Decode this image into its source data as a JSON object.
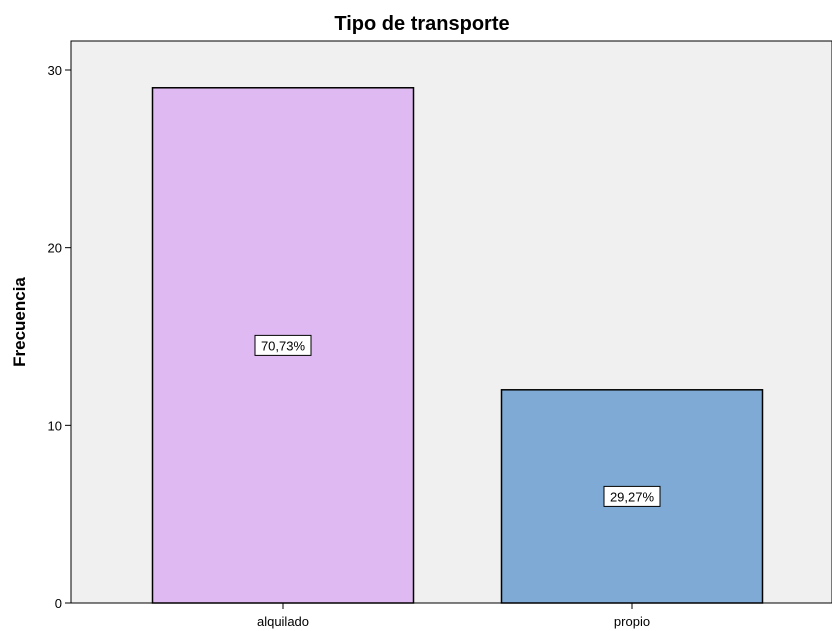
{
  "chart_data": {
    "type": "bar",
    "title": "Tipo de transporte",
    "xlabel": "",
    "ylabel": "Frecuencia",
    "categories": [
      "alquilado",
      "propio"
    ],
    "values": [
      29,
      12
    ],
    "data_labels": [
      "70,73%",
      "29,27%"
    ],
    "colors": [
      "#dfbaf2",
      "#7eaad5"
    ],
    "ylim": [
      0,
      30
    ],
    "yticks": [
      0,
      10,
      20,
      30
    ],
    "ytick_labels": [
      "0",
      "10",
      "20",
      "30"
    ],
    "grid": false,
    "legend": "none",
    "plot_background": "#f0f0f0"
  }
}
